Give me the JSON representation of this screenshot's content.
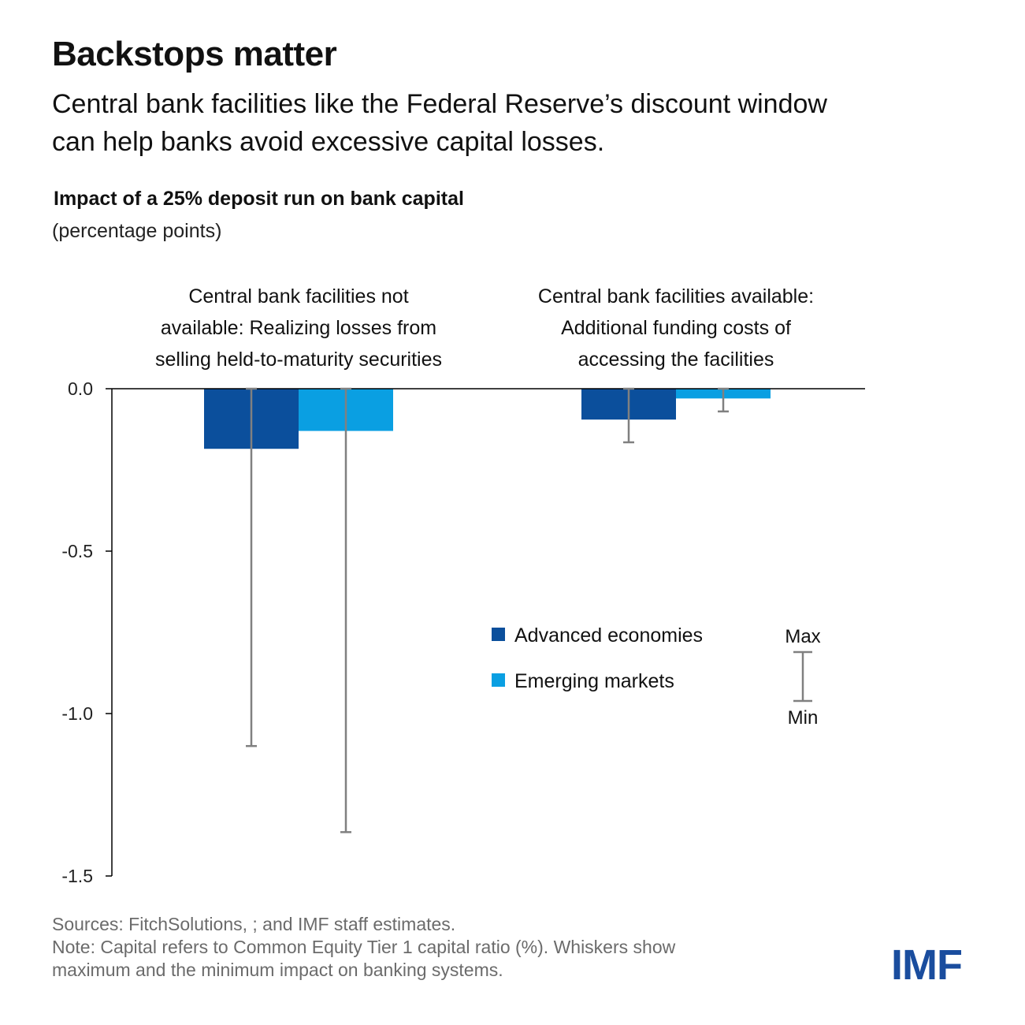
{
  "title": "Backstops matter",
  "subtitle_line1": "Central bank facilities like the Federal Reserve’s discount window",
  "subtitle_line2": "can help banks avoid excessive capital losses.",
  "footer": {
    "sources": "Sources: FitchSolutions, ; and IMF staff estimates.",
    "note_line1": "Note: Capital refers to Common Equity Tier 1 capital ratio (%). Whiskers show",
    "note_line2": "maximum and the minimum impact on banking systems."
  },
  "logo_text": "IMF",
  "chart_data": {
    "type": "bar",
    "title": "Impact of a 25% deposit run on bank capital",
    "unit": "(percentage points)",
    "ylim": [
      -1.5,
      0.0
    ],
    "yticks": [
      0.0,
      -0.5,
      -1.0,
      -1.5
    ],
    "ytick_labels": [
      "0.0",
      "-0.5",
      "-1.0",
      "-1.5"
    ],
    "categories": [
      [
        "Central bank facilities not",
        "available: Realizing losses from",
        "selling held-to-maturity securities"
      ],
      [
        "Central bank facilities available:",
        "Additional funding costs of",
        "accessing the facilities"
      ]
    ],
    "series": [
      {
        "name": "Advanced economies",
        "color": "#0b4f9c",
        "values": [
          -0.185,
          -0.095
        ],
        "max": [
          0.0,
          0.0
        ],
        "min": [
          -1.1,
          -0.165
        ]
      },
      {
        "name": "Emerging markets",
        "color": "#0a9fe2",
        "values": [
          -0.13,
          -0.03
        ],
        "max": [
          0.0,
          0.0
        ],
        "min": [
          -1.365,
          -0.07
        ]
      }
    ],
    "whisker_legend": {
      "max_label": "Max",
      "min_label": "Min"
    },
    "colors": {
      "axis": "#000000",
      "whisker": "#808080"
    }
  }
}
